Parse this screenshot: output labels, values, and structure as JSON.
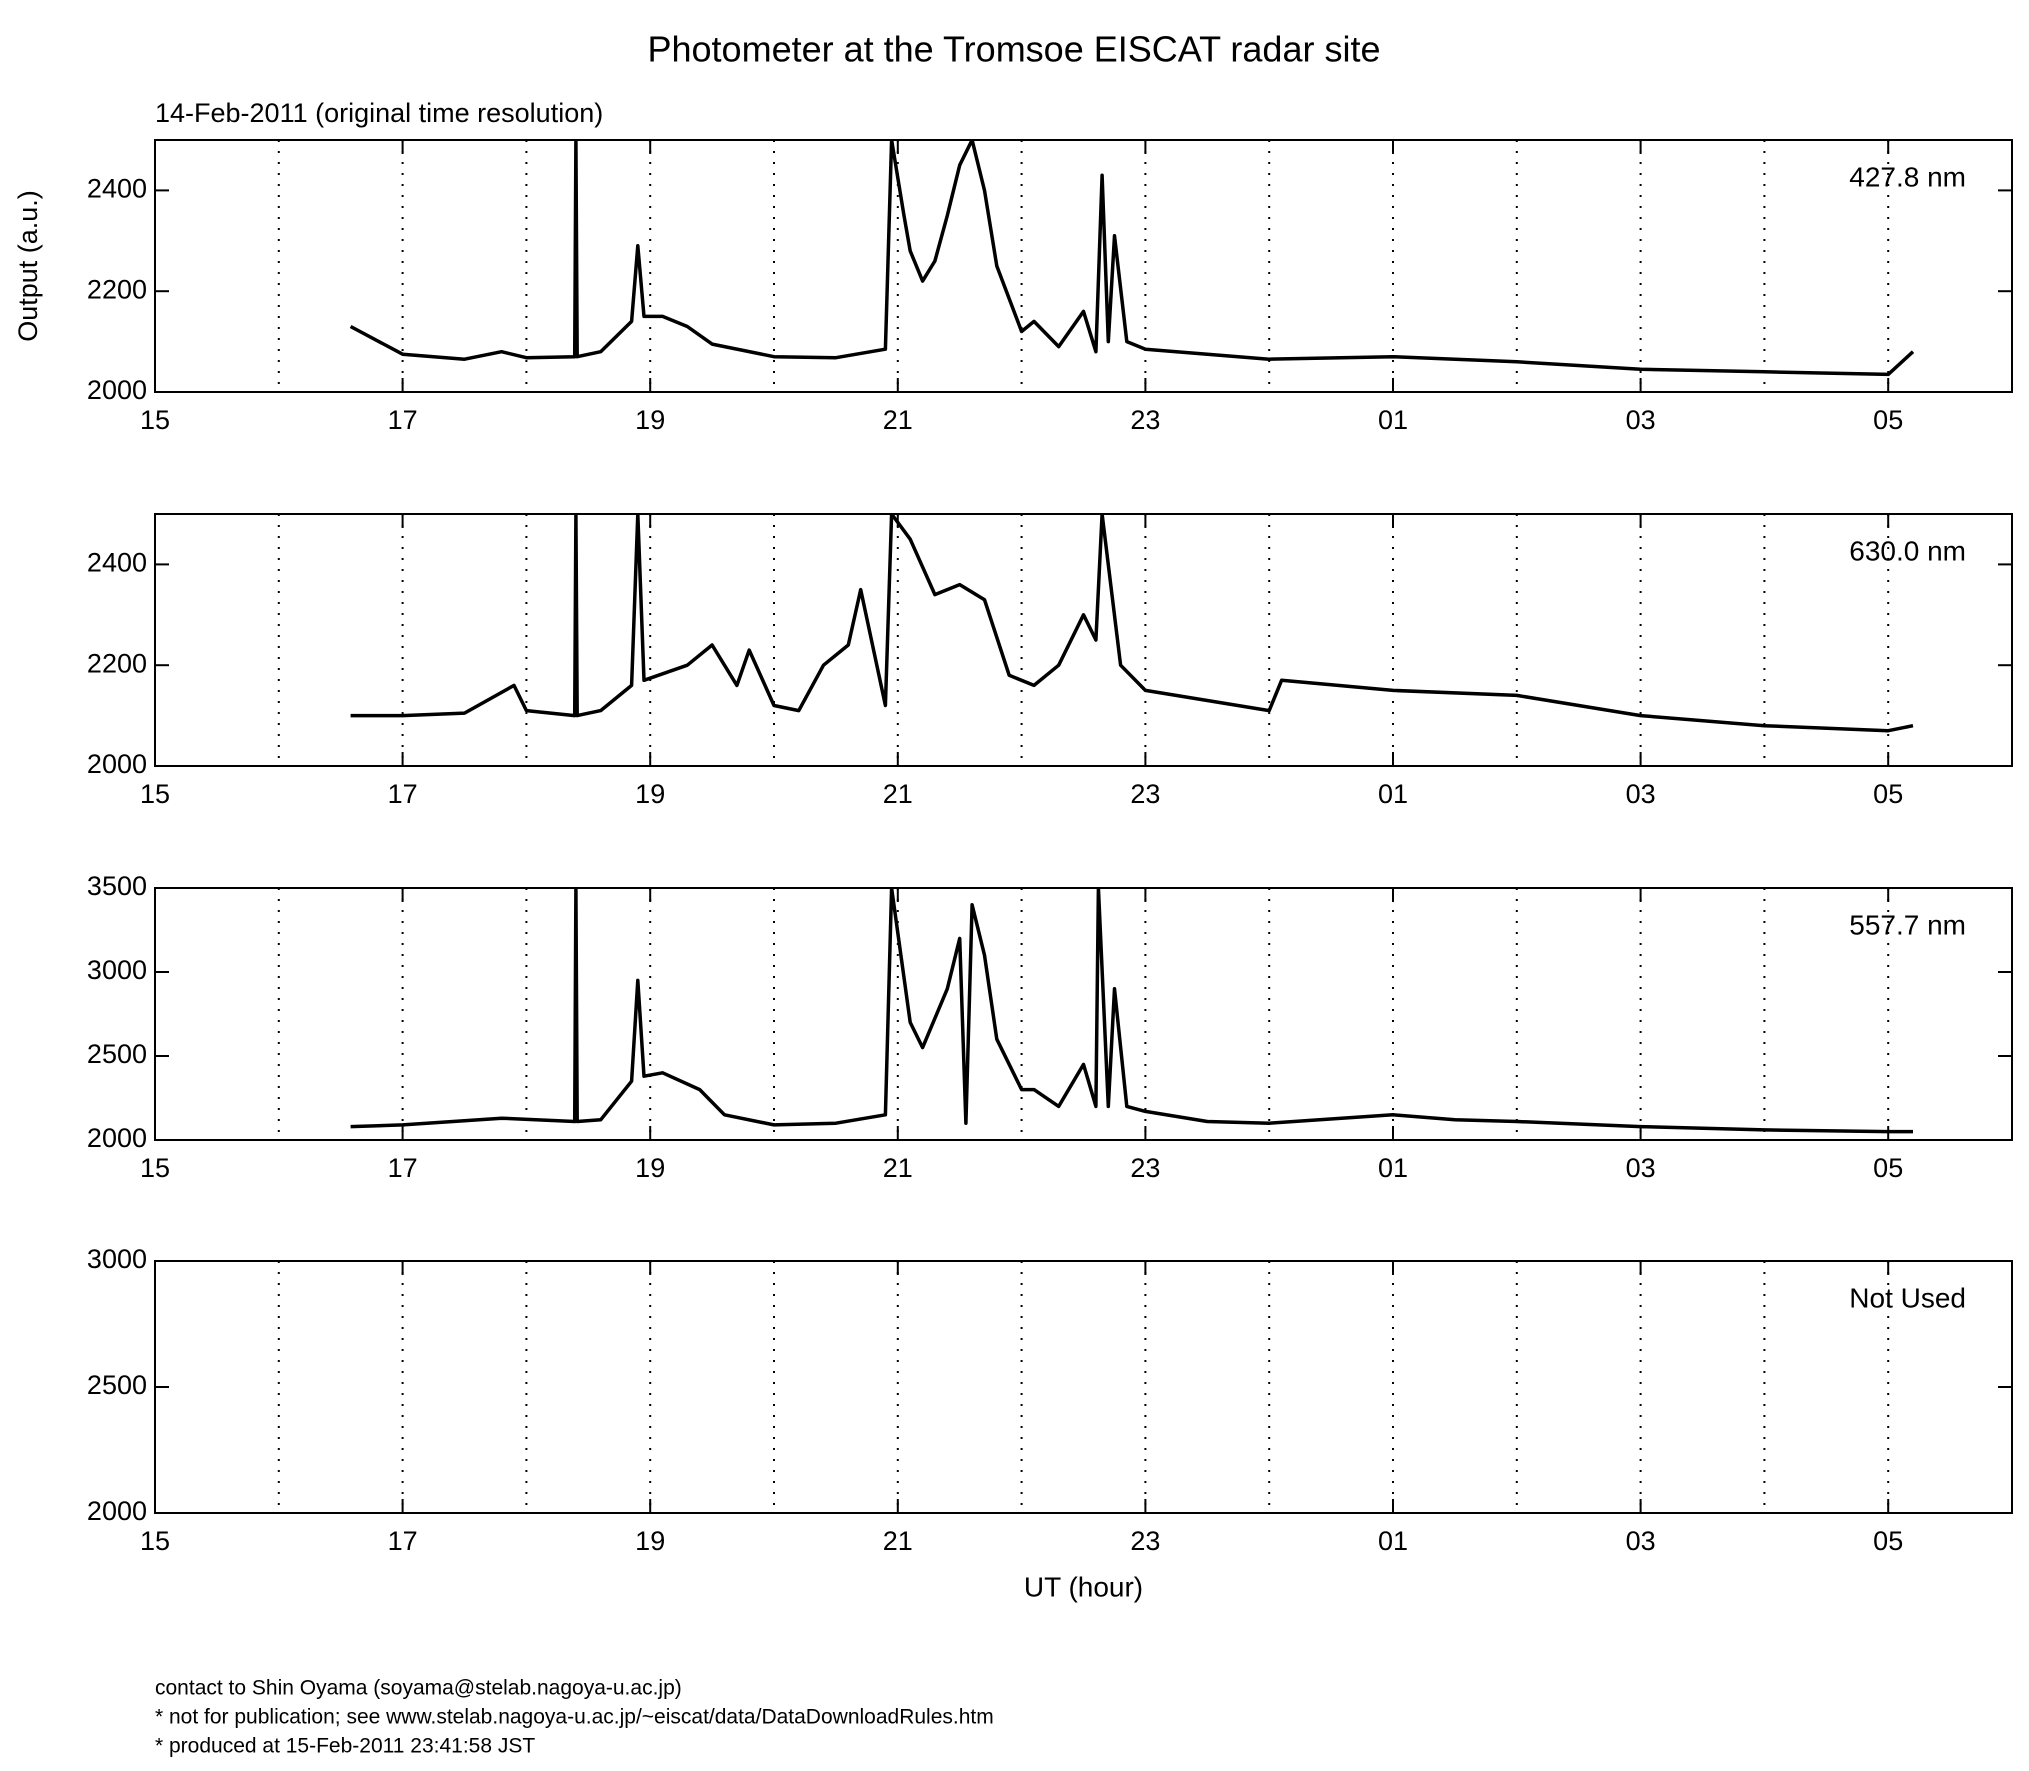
{
  "title": "Photometer at the Tromsoe EISCAT radar site",
  "subtitle": "14-Feb-2011 (original time resolution)",
  "footer": [
    "contact to Shin Oyama (soyama@stelab.nagoya-u.ac.jp)",
    "* not for publication; see www.stelab.nagoya-u.ac.jp/~eiscat/data/DataDownloadRules.htm",
    "* produced at 15-Feb-2011 23:41:58 JST"
  ],
  "chart_data": [
    {
      "type": "line",
      "label": "427.8 nm",
      "ylabel": "Output (a.u.)",
      "color": "#000000",
      "xlim": [
        15,
        30
      ],
      "xticks": [
        15,
        17,
        19,
        21,
        23,
        {
          "value": 25,
          "label": "01"
        },
        {
          "value": 27,
          "label": "03"
        },
        {
          "value": 29,
          "label": "05"
        }
      ],
      "xgrid": [
        16,
        17,
        18,
        19,
        20,
        21,
        22,
        23,
        24,
        25,
        26,
        27,
        28,
        29
      ],
      "ylim": [
        2000,
        2500
      ],
      "yticks": [
        2000,
        2200,
        2400
      ],
      "x": [
        16.58,
        17,
        17.5,
        17.8,
        18,
        18.39,
        18.4,
        18.41,
        18.6,
        18.85,
        18.9,
        18.95,
        19.1,
        19.3,
        19.5,
        20,
        20.5,
        20.9,
        20.95,
        21.05,
        21.1,
        21.2,
        21.3,
        21.4,
        21.5,
        21.6,
        21.7,
        21.8,
        22,
        22.1,
        22.3,
        22.5,
        22.6,
        22.65,
        22.7,
        22.75,
        22.85,
        23,
        24,
        25,
        26,
        27,
        28,
        29,
        29.2
      ],
      "values": [
        2130,
        2075,
        2065,
        2080,
        2068,
        2070,
        2500,
        2070,
        2080,
        2140,
        2290,
        2150,
        2150,
        2130,
        2095,
        2070,
        2068,
        2085,
        2500,
        2350,
        2280,
        2220,
        2260,
        2350,
        2450,
        2500,
        2400,
        2250,
        2120,
        2140,
        2090,
        2160,
        2080,
        2430,
        2100,
        2310,
        2100,
        2085,
        2065,
        2070,
        2060,
        2045,
        2040,
        2035,
        2080
      ]
    },
    {
      "type": "line",
      "label": "630.0 nm",
      "color": "#000000",
      "xlim": [
        15,
        30
      ],
      "xticks": [
        15,
        17,
        19,
        21,
        23,
        {
          "value": 25,
          "label": "01"
        },
        {
          "value": 27,
          "label": "03"
        },
        {
          "value": 29,
          "label": "05"
        }
      ],
      "xgrid": [
        16,
        17,
        18,
        19,
        20,
        21,
        22,
        23,
        24,
        25,
        26,
        27,
        28,
        29
      ],
      "ylim": [
        2000,
        2500
      ],
      "yticks": [
        2000,
        2200,
        2400
      ],
      "x": [
        16.58,
        17,
        17.5,
        17.9,
        18,
        18.39,
        18.4,
        18.41,
        18.6,
        18.85,
        18.9,
        18.95,
        19.3,
        19.5,
        19.7,
        19.8,
        20,
        20.2,
        20.4,
        20.6,
        20.7,
        20.9,
        20.95,
        21.1,
        21.3,
        21.5,
        21.7,
        21.9,
        22.1,
        22.3,
        22.5,
        22.6,
        22.65,
        22.8,
        23,
        23.5,
        24,
        24.1,
        25,
        26,
        27,
        28,
        29,
        29.2
      ],
      "values": [
        2100,
        2100,
        2105,
        2160,
        2110,
        2100,
        2500,
        2100,
        2110,
        2160,
        2500,
        2170,
        2200,
        2240,
        2160,
        2230,
        2120,
        2110,
        2200,
        2240,
        2350,
        2120,
        2500,
        2450,
        2340,
        2360,
        2330,
        2180,
        2160,
        2200,
        2300,
        2250,
        2500,
        2200,
        2150,
        2130,
        2110,
        2170,
        2150,
        2140,
        2100,
        2080,
        2070,
        2080
      ]
    },
    {
      "type": "line",
      "label": "557.7 nm",
      "color": "#000000",
      "xlim": [
        15,
        30
      ],
      "xticks": [
        15,
        17,
        19,
        21,
        23,
        {
          "value": 25,
          "label": "01"
        },
        {
          "value": 27,
          "label": "03"
        },
        {
          "value": 29,
          "label": "05"
        }
      ],
      "xgrid": [
        16,
        17,
        18,
        19,
        20,
        21,
        22,
        23,
        24,
        25,
        26,
        27,
        28,
        29
      ],
      "ylim": [
        2000,
        3500
      ],
      "yticks": [
        2000,
        2500,
        3000,
        3500
      ],
      "x": [
        16.58,
        17,
        17.8,
        18.39,
        18.4,
        18.41,
        18.6,
        18.85,
        18.9,
        18.95,
        19.1,
        19.4,
        19.6,
        20,
        20.5,
        20.9,
        20.95,
        21.1,
        21.2,
        21.4,
        21.5,
        21.55,
        21.6,
        21.7,
        21.8,
        22,
        22.1,
        22.3,
        22.5,
        22.6,
        22.62,
        22.7,
        22.75,
        22.85,
        23,
        23.5,
        24,
        25,
        25.5,
        26,
        27,
        28,
        29,
        29.2
      ],
      "values": [
        2080,
        2090,
        2130,
        2110,
        3500,
        2110,
        2120,
        2350,
        2950,
        2380,
        2400,
        2300,
        2150,
        2090,
        2100,
        2150,
        3500,
        2700,
        2550,
        2900,
        3200,
        2100,
        3400,
        3100,
        2600,
        2300,
        2300,
        2200,
        2450,
        2200,
        3500,
        2200,
        2900,
        2200,
        2170,
        2110,
        2100,
        2150,
        2120,
        2110,
        2080,
        2060,
        2050,
        2050
      ]
    },
    {
      "type": "empty",
      "label": "Not Used",
      "xlabel": "UT (hour)",
      "xlim": [
        15,
        30
      ],
      "xticks": [
        15,
        17,
        19,
        21,
        23,
        {
          "value": 25,
          "label": "01"
        },
        {
          "value": 27,
          "label": "03"
        },
        {
          "value": 29,
          "label": "05"
        }
      ],
      "xgrid": [
        16,
        17,
        18,
        19,
        20,
        21,
        22,
        23,
        24,
        25,
        26,
        27,
        28,
        29
      ],
      "ylim": [
        2000,
        3000
      ],
      "yticks": [
        2000,
        2500,
        3000
      ]
    }
  ]
}
